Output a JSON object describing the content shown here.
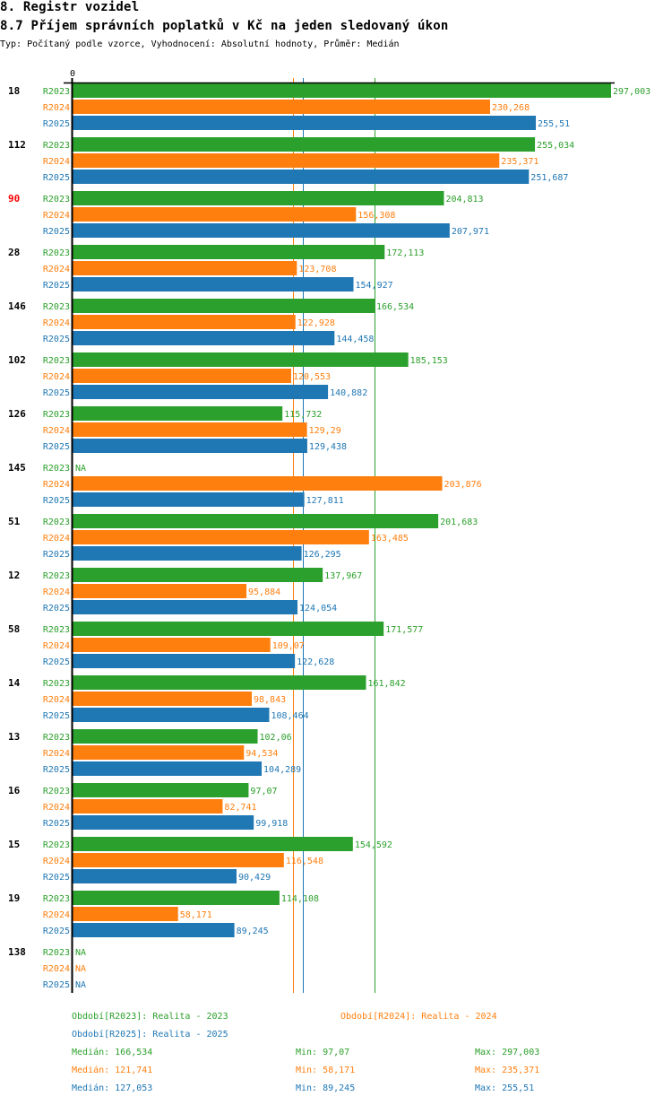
{
  "header": {
    "title": "8. Registr vozidel",
    "subtitle": "8.7 Příjem správních poplatků v Kč na jeden sledovaný úkon",
    "description": "Typ: Počítaný podle vzorce, Vyhodnocení: Absolutní hodnoty, Průměr: Medián"
  },
  "colors": {
    "R2023": "#2ca02c",
    "R2024": "#ff7f0e",
    "R2025": "#1f77b4",
    "highlight_group": "#ff0000",
    "axis": "#000000"
  },
  "chart_data": {
    "type": "bar",
    "orientation": "horizontal",
    "title": "8.7 Příjem správních poplatků v Kč na jeden sledovaný úkon",
    "xlabel": "",
    "ylabel": "",
    "xlim": [
      0,
      297.003
    ],
    "x_tick_labels": [
      "0"
    ],
    "grid": false,
    "na_label": "NA",
    "series_names": [
      "R2023",
      "R2024",
      "R2025"
    ],
    "categories": [
      "18",
      "112",
      "90",
      "28",
      "146",
      "102",
      "126",
      "145",
      "51",
      "12",
      "58",
      "14",
      "13",
      "16",
      "15",
      "19",
      "138"
    ],
    "highlighted_category": "90",
    "series": [
      {
        "name": "R2023",
        "values": [
          297.003,
          255.034,
          204.813,
          172.113,
          166.534,
          185.153,
          115.732,
          null,
          201.683,
          137.967,
          171.577,
          161.842,
          102.06,
          97.07,
          154.592,
          114.108,
          null
        ],
        "labels": [
          "297,003",
          "255,034",
          "204,813",
          "172,113",
          "166,534",
          "185,153",
          "115,732",
          "NA",
          "201,683",
          "137,967",
          "171,577",
          "161,842",
          "102,06",
          "97,07",
          "154,592",
          "114,108",
          "NA"
        ]
      },
      {
        "name": "R2024",
        "values": [
          230.268,
          235.371,
          156.308,
          123.708,
          122.928,
          120.553,
          129.29,
          203.876,
          163.485,
          95.884,
          109.07,
          98.843,
          94.534,
          82.741,
          116.548,
          58.171,
          null
        ],
        "labels": [
          "230,268",
          "235,371",
          "156,308",
          "123,708",
          "122,928",
          "120,553",
          "129,29",
          "203,876",
          "163,485",
          "95,884",
          "109,07",
          "98,843",
          "94,534",
          "82,741",
          "116,548",
          "58,171",
          "NA"
        ]
      },
      {
        "name": "R2025",
        "values": [
          255.51,
          251.687,
          207.971,
          154.927,
          144.458,
          140.882,
          129.438,
          127.811,
          126.295,
          124.054,
          122.628,
          108.464,
          104.289,
          99.918,
          90.429,
          89.245,
          null
        ],
        "labels": [
          "255,51",
          "251,687",
          "207,971",
          "154,927",
          "144,458",
          "140,882",
          "129,438",
          "127,811",
          "126,295",
          "124,054",
          "122,628",
          "108,464",
          "104,289",
          "99,918",
          "90,429",
          "89,245",
          "NA"
        ]
      }
    ],
    "median_lines": {
      "R2023": 166.534,
      "R2024": 121.741,
      "R2025": 127.053
    },
    "legend": {
      "placement": "bottom",
      "periods": [
        {
          "series": "R2023",
          "text": "Období[R2023]: Realita - 2023"
        },
        {
          "series": "R2024",
          "text": "Období[R2024]: Realita - 2024"
        },
        {
          "series": "R2025",
          "text": "Období[R2025]: Realita - 2025"
        }
      ],
      "stats": [
        {
          "series": "R2023",
          "median": "Medián: 166,534",
          "min": "Min: 97,07",
          "max": "Max: 297,003"
        },
        {
          "series": "R2024",
          "median": "Medián: 121,741",
          "min": "Min: 58,171",
          "max": "Max: 235,371"
        },
        {
          "series": "R2025",
          "median": "Medián: 127,053",
          "min": "Min: 89,245",
          "max": "Max: 255,51"
        }
      ]
    }
  }
}
